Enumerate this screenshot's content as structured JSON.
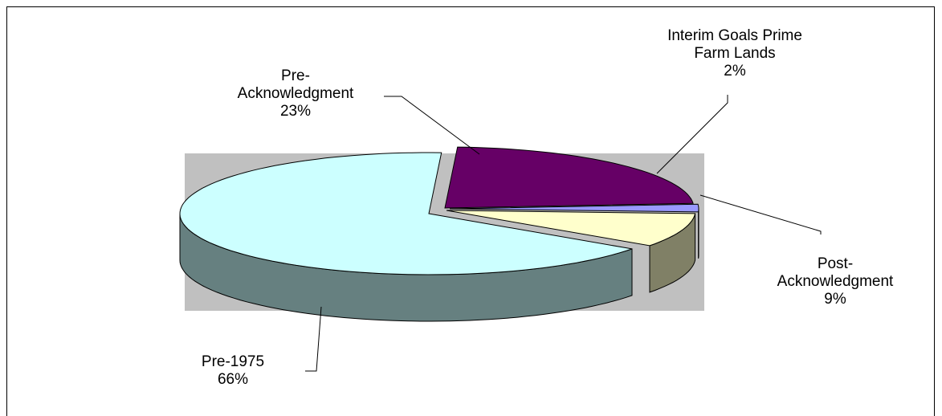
{
  "chart_data": {
    "type": "pie",
    "style": "3d",
    "slices": [
      {
        "label": [
          "Pre-",
          "Acknowledgment"
        ],
        "percent_label": "23%",
        "value": 23,
        "color": "#660066"
      },
      {
        "label": [
          "Interim Goals Prime",
          "Farm Lands"
        ],
        "percent_label": "2%",
        "value": 2,
        "color": "#9999ff"
      },
      {
        "label": [
          "Post-",
          "Acknowledgment"
        ],
        "percent_label": "9%",
        "value": 9,
        "color": "#ffffcc"
      },
      {
        "label": [
          "Pre-1975"
        ],
        "percent_label": "66%",
        "value": 66,
        "color": "#ccffff"
      }
    ],
    "plot_area_color": "#c0c0c0",
    "side_color": "#668080"
  }
}
